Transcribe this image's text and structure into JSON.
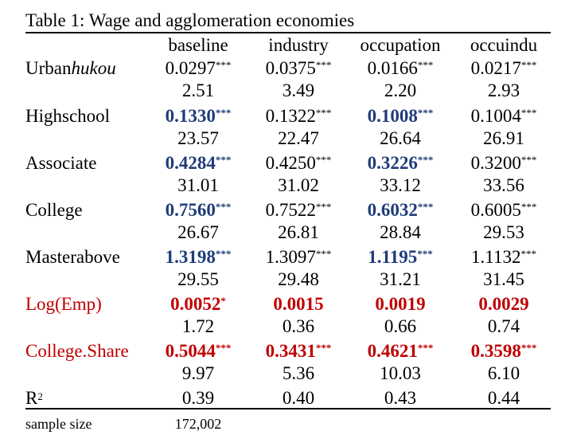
{
  "table": {
    "title": "Table 1: Wage and agglomeration economies",
    "columns": [
      "baseline",
      "industry",
      "occupation",
      "occuindu"
    ],
    "colors": {
      "highlight_blue": "#1f3c7a",
      "highlight_red": "#c00000"
    },
    "rows": [
      {
        "label_prefix": "Urban",
        "label_italic": "hukou",
        "coef": [
          "0.0297",
          "0.0375",
          "0.0166",
          "0.0217"
        ],
        "stars": [
          "***",
          "***",
          "***",
          "***"
        ],
        "tstat": [
          "2.51",
          "3.49",
          "2.20",
          "2.93"
        ]
      },
      {
        "label": "Highschool",
        "coef": [
          "0.1330",
          "0.1322",
          "0.1008",
          "0.1004"
        ],
        "stars": [
          "***",
          "***",
          "***",
          "***"
        ],
        "tstat": [
          "23.57",
          "22.47",
          "26.64",
          "26.91"
        ]
      },
      {
        "label": "Associate",
        "coef": [
          "0.4284",
          "0.4250",
          "0.3226",
          "0.3200"
        ],
        "stars": [
          "***",
          "***",
          "***",
          "***"
        ],
        "tstat": [
          "31.01",
          "31.02",
          "33.12",
          "33.56"
        ]
      },
      {
        "label": "College",
        "coef": [
          "0.7560",
          "0.7522",
          "0.6032",
          "0.6005"
        ],
        "stars": [
          "***",
          "***",
          "***",
          "***"
        ],
        "tstat": [
          "26.67",
          "26.81",
          "28.84",
          "29.53"
        ]
      },
      {
        "label": "Masterabove",
        "coef": [
          "1.3198",
          "1.3097",
          "1.1195",
          "1.1132"
        ],
        "stars": [
          "***",
          "***",
          "***",
          "***"
        ],
        "tstat": [
          "29.55",
          "29.48",
          "31.21",
          "31.45"
        ]
      },
      {
        "label": "Log(Emp)",
        "coef": [
          "0.0052",
          "0.0015",
          "0.0019",
          "0.0029"
        ],
        "stars": [
          "*",
          "",
          "",
          ""
        ],
        "tstat": [
          "1.72",
          "0.36",
          "0.66",
          "0.74"
        ]
      },
      {
        "label": "College.Share",
        "coef": [
          "0.5044",
          "0.3431",
          "0.4621",
          "0.3598"
        ],
        "stars": [
          "***",
          "***",
          "***",
          "***"
        ],
        "tstat": [
          "9.97",
          "5.36",
          "10.03",
          "6.10"
        ]
      }
    ],
    "r2": {
      "label": "R",
      "sup": "2",
      "values": [
        "0.39",
        "0.40",
        "0.43",
        "0.44"
      ]
    },
    "sample": {
      "label": "sample size",
      "value": "172,002"
    }
  }
}
